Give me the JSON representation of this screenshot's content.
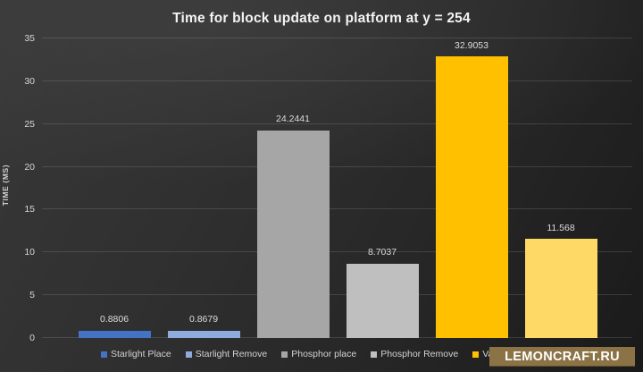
{
  "page": {
    "title": "Time for block update on platform at y = 254"
  },
  "chart_data": {
    "type": "bar",
    "title": "Time for block update on platform at y = 254",
    "xlabel": "",
    "ylabel": "TIME (MS)",
    "ylim": [
      0,
      35
    ],
    "yticks": [
      0,
      5,
      10,
      15,
      20,
      25,
      30,
      35
    ],
    "grid": true,
    "legend_position": "bottom",
    "bars": [
      {
        "legend_label": "Starlight Place",
        "value": 0.8806,
        "data_label": "0.8806",
        "color": "#4472c4"
      },
      {
        "legend_label": "Starlight Remove",
        "value": 0.8679,
        "data_label": "0.8679",
        "color": "#8faadc"
      },
      {
        "legend_label": "Phosphor place",
        "value": 24.2441,
        "data_label": "24.2441",
        "color": "#a6a6a6"
      },
      {
        "legend_label": "Phosphor Remove",
        "value": 8.7037,
        "data_label": "8.7037",
        "color": "#bfbfbf"
      },
      {
        "legend_label": "Vanilla place",
        "value": 32.9053,
        "data_label": "32.9053",
        "color": "#ffc000"
      },
      {
        "legend_label": "",
        "value": 11.568,
        "data_label": "11.568",
        "color": "#ffd966",
        "legend_label_occluded": true
      }
    ]
  },
  "watermark": {
    "text": "LEMONCRAFT.RU",
    "background_color": "#8b7345",
    "text_color": "#ffffff"
  },
  "colors": {
    "background_dark": "#1a1a1a",
    "background_light": "#383838",
    "gridline": "rgba(255,255,255,0.13)",
    "axis_text": "#d6d6d6",
    "title_text": "#f4f4f4"
  }
}
